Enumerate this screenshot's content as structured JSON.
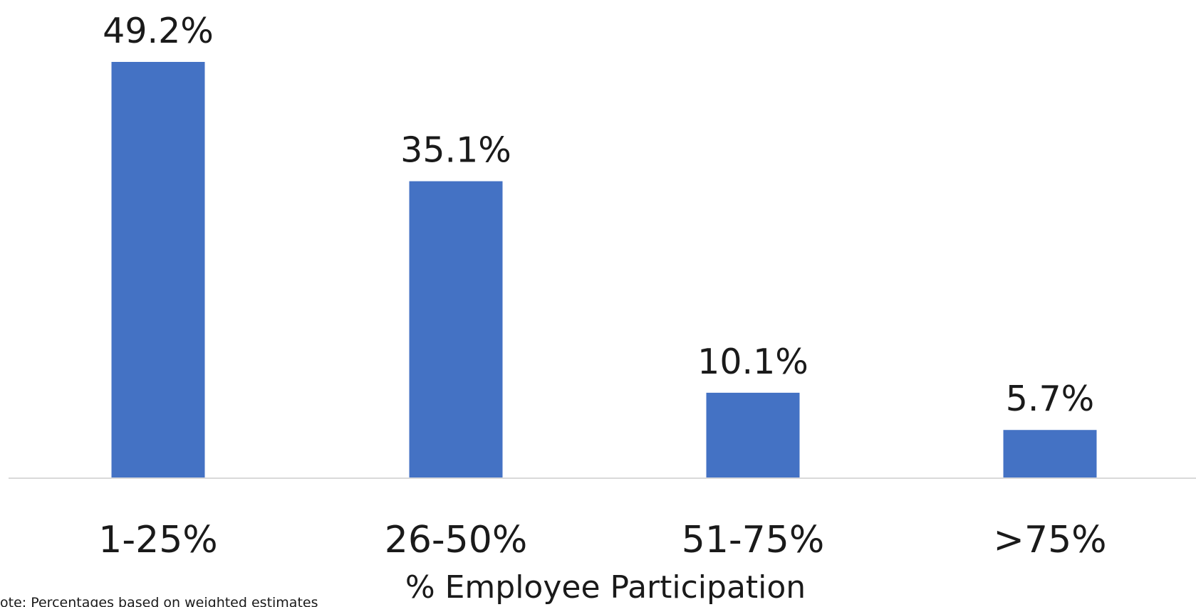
{
  "chart_data": {
    "type": "bar",
    "categories": [
      "1-25%",
      "26-50%",
      "51-75%",
      ">75%"
    ],
    "values": [
      49.2,
      35.1,
      10.1,
      5.7
    ],
    "value_labels": [
      "49.2%",
      "35.1%",
      "10.1%",
      "5.7%"
    ],
    "title": "",
    "xlabel": "% Employee Participation",
    "ylabel": "",
    "ylim": [
      0,
      49.2
    ],
    "grid": false,
    "legend": "none",
    "bar_color": "#4472C4",
    "axis_color": "#D9D9D9"
  },
  "note": "ote: Percentages based on weighted estimates"
}
